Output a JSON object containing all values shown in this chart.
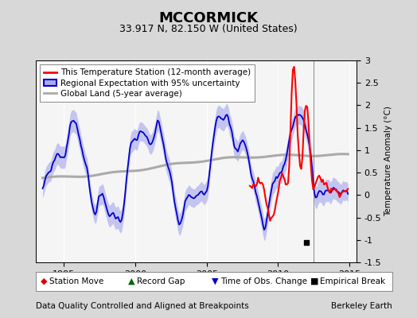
{
  "title": "MCCORMICK",
  "subtitle": "33.917 N, 82.150 W (United States)",
  "ylabel": "Temperature Anomaly (°C)",
  "footer_left": "Data Quality Controlled and Aligned at Breakpoints",
  "footer_right": "Berkeley Earth",
  "xlim": [
    1993.0,
    2015.5
  ],
  "ylim": [
    -1.5,
    3.0
  ],
  "yticks": [
    -1.5,
    -1.0,
    -0.5,
    0.0,
    0.5,
    1.0,
    1.5,
    2.0,
    2.5,
    3.0
  ],
  "xticks": [
    1995,
    2000,
    2005,
    2010,
    2015
  ],
  "bg_color": "#d8d8d8",
  "plot_bg_color": "#f5f5f5",
  "empirical_break_x": 2012.0,
  "empirical_break_y": -1.05,
  "vertical_line_x": 2012.5,
  "legend_station": "This Temperature Station (12-month average)",
  "legend_regional": "Regional Expectation with 95% uncertainty",
  "legend_global": "Global Land (5-year average)",
  "station_color": "#ff0000",
  "regional_color": "#0000cc",
  "regional_fill_color": "#aaaaee",
  "global_color": "#aaaaaa",
  "title_fontsize": 13,
  "subtitle_fontsize": 9,
  "tick_fontsize": 8,
  "legend_fontsize": 7.5,
  "footer_fontsize": 7.5
}
